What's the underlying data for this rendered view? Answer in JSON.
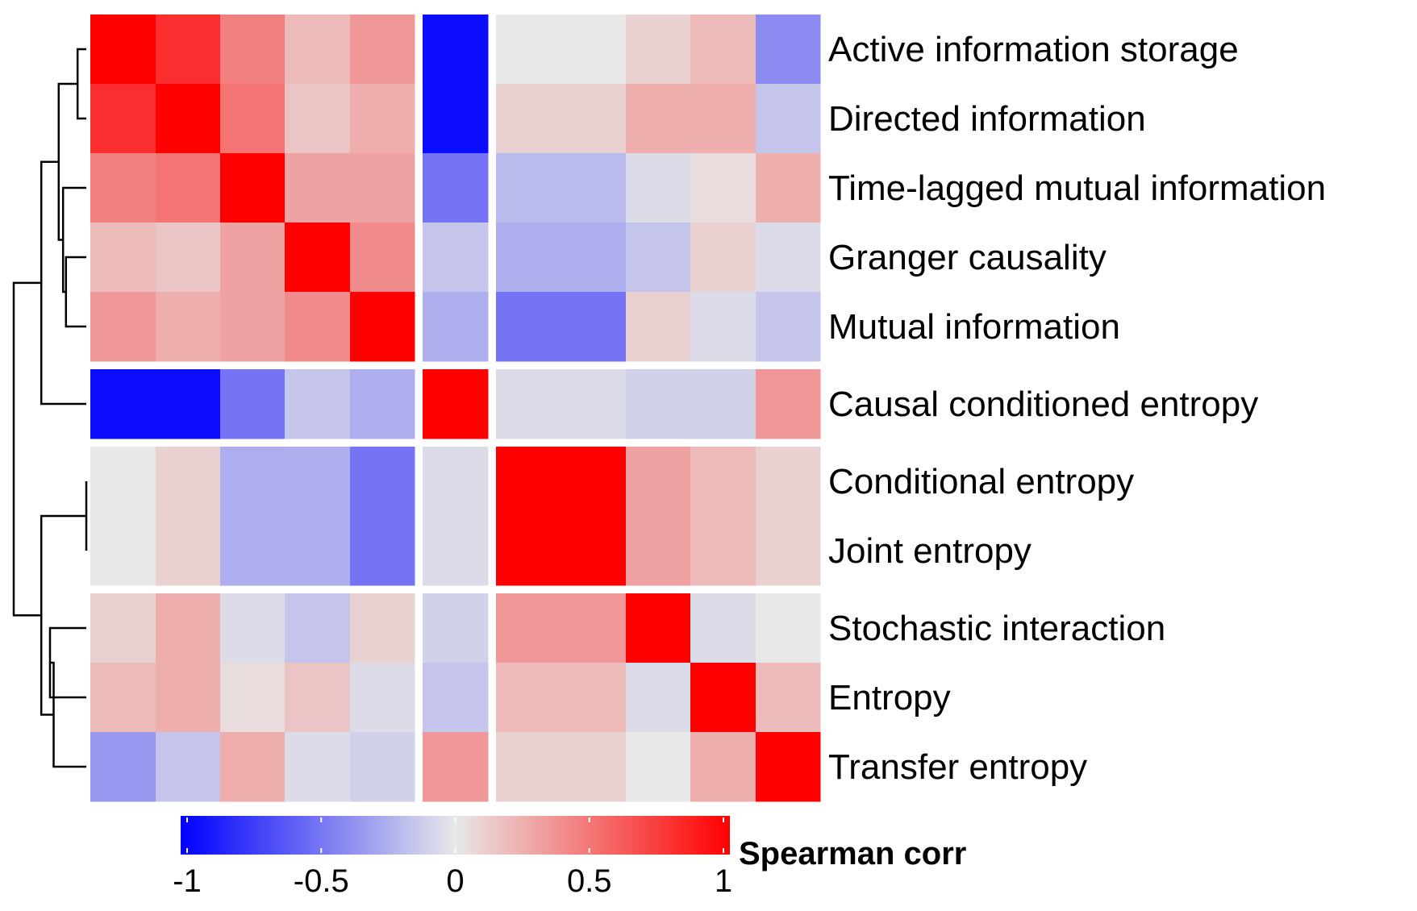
{
  "chart_data": {
    "type": "heatmap",
    "rows": [
      "Active information storage",
      "Directed information",
      "Time-lagged mutual information",
      "Granger causality",
      "Mutual information",
      "Causal conditioned entropy",
      "Conditional entropy",
      "Joint entropy",
      "Stochastic interaction",
      "Entropy",
      "Transfer entropy"
    ],
    "values": [
      [
        1.0,
        0.8,
        0.45,
        0.2,
        0.35,
        -0.95,
        0.0,
        0.0,
        0.1,
        0.2,
        -0.4
      ],
      [
        0.8,
        1.0,
        0.5,
        0.15,
        0.25,
        -0.95,
        0.1,
        0.1,
        0.25,
        0.25,
        -0.15
      ],
      [
        0.45,
        0.5,
        1.0,
        0.3,
        0.3,
        -0.5,
        -0.2,
        -0.2,
        -0.05,
        0.05,
        0.25
      ],
      [
        0.2,
        0.15,
        0.3,
        1.0,
        0.4,
        -0.15,
        -0.25,
        -0.25,
        -0.15,
        0.1,
        -0.05
      ],
      [
        0.35,
        0.25,
        0.3,
        0.4,
        1.0,
        -0.25,
        -0.5,
        -0.5,
        0.1,
        -0.05,
        -0.15
      ],
      [
        -0.95,
        -0.95,
        -0.5,
        -0.15,
        -0.25,
        1.0,
        -0.05,
        -0.05,
        -0.1,
        -0.1,
        0.35
      ],
      [
        0.0,
        0.1,
        -0.25,
        -0.25,
        -0.5,
        -0.05,
        1.0,
        1.0,
        0.3,
        0.2,
        0.1
      ],
      [
        0.0,
        0.1,
        -0.25,
        -0.25,
        -0.5,
        -0.05,
        1.0,
        1.0,
        0.3,
        0.2,
        0.1
      ],
      [
        0.1,
        0.25,
        -0.05,
        -0.15,
        0.1,
        -0.1,
        0.35,
        0.35,
        1.0,
        -0.05,
        0.0
      ],
      [
        0.2,
        0.25,
        0.05,
        0.15,
        -0.05,
        -0.15,
        0.2,
        0.2,
        -0.05,
        1.0,
        0.2
      ],
      [
        -0.35,
        -0.15,
        0.25,
        -0.05,
        -0.1,
        0.35,
        0.1,
        0.1,
        0.0,
        0.25,
        1.0
      ]
    ],
    "row_gaps_after": [
      4,
      5,
      7
    ],
    "col_gaps_after": [
      4,
      5
    ],
    "color_scale": {
      "min": -1,
      "max": 1,
      "low": "#0000ff",
      "mid": "#e8e8e8",
      "high": "#ff0000"
    },
    "legend": {
      "title": "Spearman corr",
      "ticks": [
        -1,
        -0.5,
        0,
        0.5,
        1
      ],
      "tick_labels": [
        "-1",
        "-0.5",
        "0",
        "0.5",
        "1"
      ],
      "placement": "bottom"
    },
    "dendrogram": {
      "side": "left",
      "merges": [
        [
          0,
          1,
          0.12
        ],
        [
          3,
          4,
          0.28
        ],
        [
          2,
          12,
          0.32
        ],
        [
          11,
          13,
          0.38
        ],
        [
          6,
          7,
          0.0
        ],
        [
          8,
          9,
          0.5
        ],
        [
          16,
          10,
          0.45
        ],
        [
          15,
          17,
          0.62
        ],
        [
          5,
          14,
          0.62
        ],
        [
          18,
          19,
          1.0
        ]
      ]
    }
  }
}
